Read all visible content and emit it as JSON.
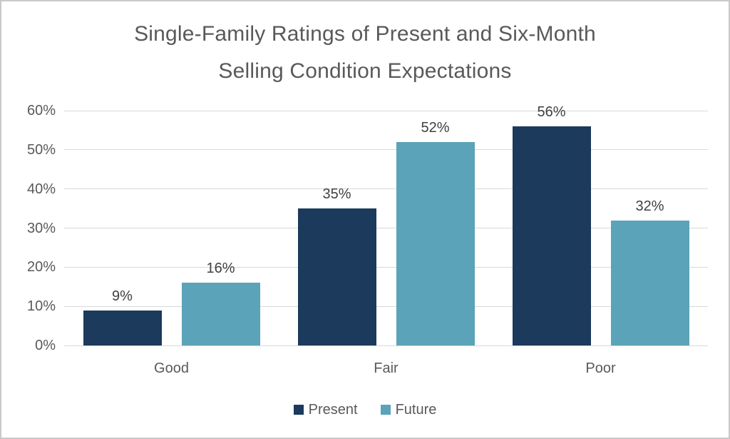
{
  "chart_data": {
    "type": "bar",
    "title": "Single-Family Ratings of Present and Six-Month Selling Condition Expectations",
    "title_lines": [
      "Single-Family Ratings of Present and Six-Month",
      "Selling Condition Expectations"
    ],
    "categories": [
      "Good",
      "Fair",
      "Poor"
    ],
    "series": [
      {
        "name": "Present",
        "color": "#1B3A5C",
        "values": [
          9,
          35,
          56
        ]
      },
      {
        "name": "Future",
        "color": "#5BA3B8",
        "values": [
          16,
          52,
          32
        ]
      }
    ],
    "data_labels": [
      [
        "9%",
        "35%",
        "56%"
      ],
      [
        "16%",
        "52%",
        "32%"
      ]
    ],
    "xlabel": "",
    "ylabel": "",
    "ylim": [
      0,
      60
    ],
    "y_tick_step": 10,
    "y_ticks": [
      "0%",
      "10%",
      "20%",
      "30%",
      "40%",
      "50%",
      "60%"
    ],
    "grid": true,
    "legend_position": "bottom",
    "colors": {
      "background": "#FFFFFF",
      "border": "#C9C9C9",
      "grid": "#D9D9D9",
      "axis_text": "#595959",
      "title_text": "#595959",
      "data_label_text": "#404040"
    }
  }
}
